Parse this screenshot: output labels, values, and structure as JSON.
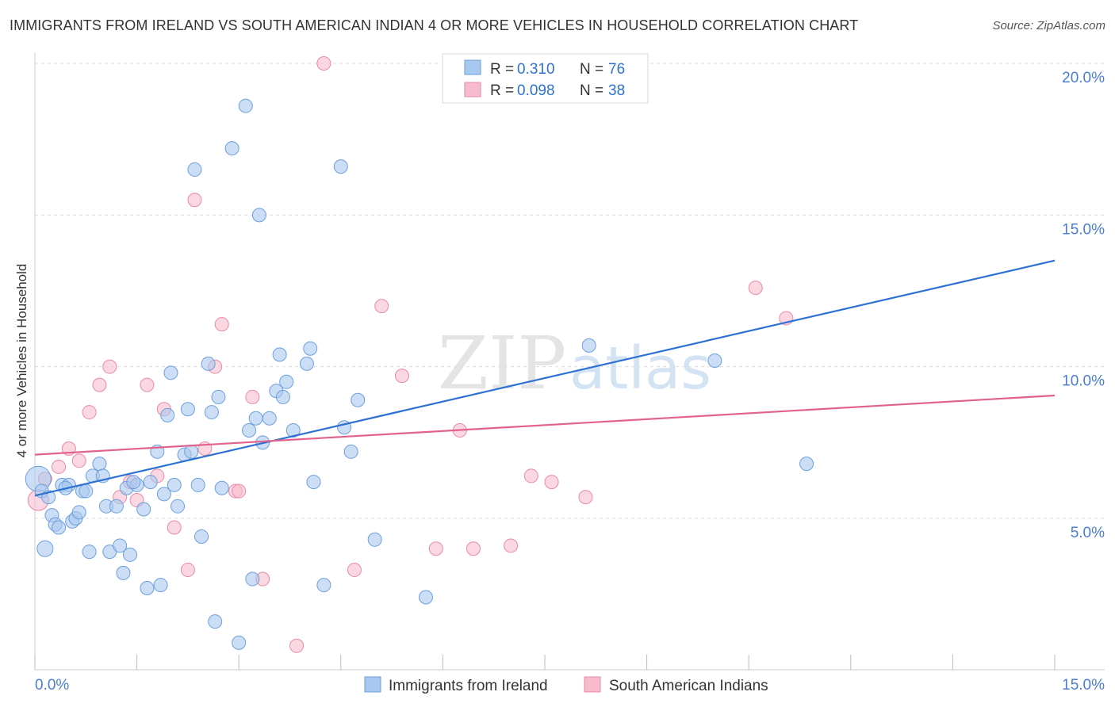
{
  "header": {
    "title": "IMMIGRANTS FROM IRELAND VS SOUTH AMERICAN INDIAN 4 OR MORE VEHICLES IN HOUSEHOLD CORRELATION CHART",
    "source": "Source: ZipAtlas.com"
  },
  "watermark": {
    "zip": "ZIP",
    "atlas": "atlas"
  },
  "colors": {
    "blue_fill": "#a9c8ef",
    "blue_stroke": "#6d9fdc",
    "blue_line": "#2d72d2",
    "pink_fill": "#f6bccd",
    "pink_stroke": "#e88aa6",
    "pink_line": "#e2628e",
    "tick_label": "#4a7fd0",
    "grid": "#dddddd"
  },
  "chart_data": {
    "type": "scatter",
    "title": "IMMIGRANTS FROM IRELAND VS SOUTH AMERICAN INDIAN 4 OR MORE VEHICLES IN HOUSEHOLD CORRELATION CHART",
    "xlabel": "",
    "ylabel": "4 or more Vehicles in Household",
    "xlim": [
      0,
      15
    ],
    "ylim": [
      0,
      20.5
    ],
    "x_tick_labels": [
      "0.0%",
      "15.0%"
    ],
    "y_ticks": [
      5,
      10,
      15,
      20
    ],
    "y_tick_labels": [
      "5.0%",
      "10.0%",
      "15.0%",
      "20.0%"
    ],
    "grid": true,
    "legend_position": "top-center",
    "legend": [
      {
        "series": "Immigrants from Ireland",
        "r_label": "R =",
        "r_value": "0.310",
        "n_label": "N =",
        "n_value": "76"
      },
      {
        "series": "South American Indians",
        "r_label": "R =",
        "r_value": "0.098",
        "n_label": "N =",
        "n_value": "38"
      }
    ],
    "series": [
      {
        "name": "Immigrants from Ireland",
        "color": "blue",
        "trend": {
          "x": [
            0,
            15
          ],
          "y": [
            5.75,
            13.5
          ]
        },
        "points": [
          {
            "x": 0.05,
            "y": 6.3
          },
          {
            "x": 0.1,
            "y": 5.9
          },
          {
            "x": 0.15,
            "y": 4.0
          },
          {
            "x": 0.2,
            "y": 5.7
          },
          {
            "x": 0.25,
            "y": 5.1
          },
          {
            "x": 0.3,
            "y": 4.8
          },
          {
            "x": 0.35,
            "y": 4.7
          },
          {
            "x": 0.4,
            "y": 6.1
          },
          {
            "x": 0.5,
            "y": 6.1
          },
          {
            "x": 0.55,
            "y": 4.9
          },
          {
            "x": 0.6,
            "y": 5.0
          },
          {
            "x": 0.65,
            "y": 5.2
          },
          {
            "x": 0.7,
            "y": 5.9
          },
          {
            "x": 0.75,
            "y": 5.9
          },
          {
            "x": 0.8,
            "y": 3.9
          },
          {
            "x": 0.85,
            "y": 6.4
          },
          {
            "x": 0.95,
            "y": 6.8
          },
          {
            "x": 1.0,
            "y": 6.4
          },
          {
            "x": 1.05,
            "y": 5.4
          },
          {
            "x": 1.1,
            "y": 3.9
          },
          {
            "x": 1.2,
            "y": 5.4
          },
          {
            "x": 1.25,
            "y": 4.1
          },
          {
            "x": 1.3,
            "y": 3.2
          },
          {
            "x": 1.35,
            "y": 6.0
          },
          {
            "x": 1.4,
            "y": 3.8
          },
          {
            "x": 1.5,
            "y": 6.1
          },
          {
            "x": 1.6,
            "y": 5.3
          },
          {
            "x": 1.65,
            "y": 2.7
          },
          {
            "x": 1.7,
            "y": 6.2
          },
          {
            "x": 1.8,
            "y": 7.2
          },
          {
            "x": 1.85,
            "y": 2.8
          },
          {
            "x": 1.9,
            "y": 5.8
          },
          {
            "x": 1.95,
            "y": 8.4
          },
          {
            "x": 2.0,
            "y": 9.8
          },
          {
            "x": 2.05,
            "y": 6.1
          },
          {
            "x": 2.1,
            "y": 5.4
          },
          {
            "x": 2.2,
            "y": 7.1
          },
          {
            "x": 2.25,
            "y": 8.6
          },
          {
            "x": 2.3,
            "y": 7.2
          },
          {
            "x": 2.35,
            "y": 16.5
          },
          {
            "x": 2.4,
            "y": 6.1
          },
          {
            "x": 2.45,
            "y": 4.4
          },
          {
            "x": 2.55,
            "y": 10.1
          },
          {
            "x": 2.6,
            "y": 8.5
          },
          {
            "x": 2.65,
            "y": 1.6
          },
          {
            "x": 2.7,
            "y": 9.0
          },
          {
            "x": 2.75,
            "y": 6.0
          },
          {
            "x": 2.9,
            "y": 17.2
          },
          {
            "x": 3.0,
            "y": 0.9
          },
          {
            "x": 3.1,
            "y": 18.6
          },
          {
            "x": 3.15,
            "y": 7.9
          },
          {
            "x": 3.2,
            "y": 3.0
          },
          {
            "x": 3.25,
            "y": 8.3
          },
          {
            "x": 3.3,
            "y": 15.0
          },
          {
            "x": 3.35,
            "y": 7.5
          },
          {
            "x": 3.45,
            "y": 8.3
          },
          {
            "x": 3.55,
            "y": 9.2
          },
          {
            "x": 3.6,
            "y": 10.4
          },
          {
            "x": 3.65,
            "y": 9.0
          },
          {
            "x": 3.7,
            "y": 9.5
          },
          {
            "x": 3.8,
            "y": 7.9
          },
          {
            "x": 4.0,
            "y": 10.1
          },
          {
            "x": 4.05,
            "y": 10.6
          },
          {
            "x": 4.1,
            "y": 6.2
          },
          {
            "x": 4.25,
            "y": 2.8
          },
          {
            "x": 4.5,
            "y": 16.6
          },
          {
            "x": 4.55,
            "y": 8.0
          },
          {
            "x": 4.65,
            "y": 7.2
          },
          {
            "x": 4.75,
            "y": 8.9
          },
          {
            "x": 5.0,
            "y": 4.3
          },
          {
            "x": 5.75,
            "y": 2.4
          },
          {
            "x": 8.15,
            "y": 10.7
          },
          {
            "x": 10.0,
            "y": 10.2
          },
          {
            "x": 11.35,
            "y": 6.8
          },
          {
            "x": 1.45,
            "y": 6.2
          },
          {
            "x": 0.45,
            "y": 6.0
          }
        ]
      },
      {
        "name": "South American Indians",
        "color": "pink",
        "trend": {
          "x": [
            0,
            15
          ],
          "y": [
            7.1,
            9.05
          ]
        },
        "points": [
          {
            "x": 0.05,
            "y": 5.6
          },
          {
            "x": 0.15,
            "y": 6.3
          },
          {
            "x": 0.35,
            "y": 6.7
          },
          {
            "x": 0.5,
            "y": 7.3
          },
          {
            "x": 0.65,
            "y": 6.9
          },
          {
            "x": 0.8,
            "y": 8.5
          },
          {
            "x": 0.95,
            "y": 9.4
          },
          {
            "x": 1.1,
            "y": 10.0
          },
          {
            "x": 1.25,
            "y": 5.7
          },
          {
            "x": 1.4,
            "y": 6.2
          },
          {
            "x": 1.5,
            "y": 5.6
          },
          {
            "x": 1.65,
            "y": 9.4
          },
          {
            "x": 1.8,
            "y": 6.4
          },
          {
            "x": 1.9,
            "y": 8.6
          },
          {
            "x": 2.05,
            "y": 4.7
          },
          {
            "x": 2.25,
            "y": 3.3
          },
          {
            "x": 2.35,
            "y": 15.5
          },
          {
            "x": 2.5,
            "y": 7.3
          },
          {
            "x": 2.65,
            "y": 10.0
          },
          {
            "x": 2.75,
            "y": 11.4
          },
          {
            "x": 2.95,
            "y": 5.9
          },
          {
            "x": 3.0,
            "y": 5.9
          },
          {
            "x": 3.2,
            "y": 9.0
          },
          {
            "x": 3.35,
            "y": 3.0
          },
          {
            "x": 3.85,
            "y": 0.8
          },
          {
            "x": 4.25,
            "y": 20.0
          },
          {
            "x": 4.7,
            "y": 3.3
          },
          {
            "x": 5.1,
            "y": 12.0
          },
          {
            "x": 5.4,
            "y": 9.7
          },
          {
            "x": 5.9,
            "y": 4.0
          },
          {
            "x": 6.25,
            "y": 7.9
          },
          {
            "x": 6.45,
            "y": 4.0
          },
          {
            "x": 7.0,
            "y": 4.1
          },
          {
            "x": 7.3,
            "y": 6.4
          },
          {
            "x": 7.6,
            "y": 6.2
          },
          {
            "x": 8.1,
            "y": 5.7
          },
          {
            "x": 10.6,
            "y": 12.6
          },
          {
            "x": 11.05,
            "y": 11.6
          }
        ]
      }
    ]
  },
  "bottom_legend": [
    "Immigrants from Ireland",
    "South American Indians"
  ]
}
